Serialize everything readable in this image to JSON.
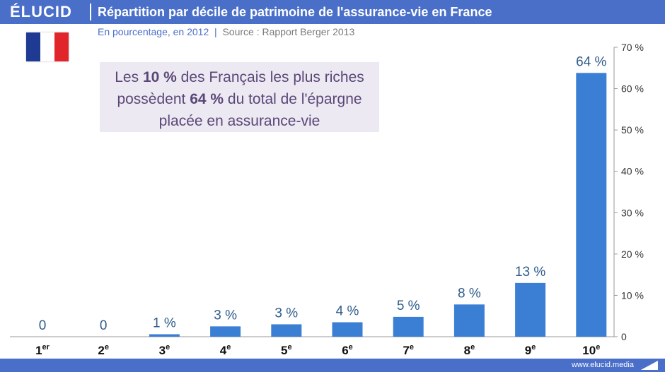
{
  "brand": "ÉLUCID",
  "footer": {
    "url": "www.elucid.media"
  },
  "colors": {
    "header": "#4a6fc9",
    "bar": "#3b7fd4",
    "annotation_bg": "#ece9f2",
    "annotation_text": "#5a4777"
  },
  "icons": {
    "flag": "france-flag-icon",
    "footer": "arrow-icon"
  },
  "annotation": {
    "part1": "Les ",
    "highlight1": "10 %",
    "part2": " des Français les plus riches",
    "part3": "possèdent ",
    "highlight2": "64 %",
    "part4": " du total de l'épargne",
    "part5": "placée en assurance-vie"
  },
  "chart_data": {
    "type": "bar",
    "title": "Répartition par décile de patrimoine de l'assurance-vie en France",
    "subtitle": "En pourcentage, en 2012",
    "source": "Source : Rapport Berger 2013",
    "categories": [
      {
        "base": "1",
        "sup": "er"
      },
      {
        "base": "2",
        "sup": "e"
      },
      {
        "base": "3",
        "sup": "e"
      },
      {
        "base": "4",
        "sup": "e"
      },
      {
        "base": "5",
        "sup": "e"
      },
      {
        "base": "6",
        "sup": "e"
      },
      {
        "base": "7",
        "sup": "e"
      },
      {
        "base": "8",
        "sup": "e"
      },
      {
        "base": "9",
        "sup": "e"
      },
      {
        "base": "10",
        "sup": "e"
      }
    ],
    "values": [
      0,
      0,
      0.6,
      2.5,
      3.0,
      3.5,
      4.8,
      7.8,
      13.0,
      63.8
    ],
    "data_labels": [
      "0",
      "0",
      "1 %",
      "3 %",
      "3 %",
      "4 %",
      "5 %",
      "8 %",
      "13 %",
      "64 %"
    ],
    "ylim": [
      0,
      70
    ],
    "yticks": [
      0,
      10,
      20,
      30,
      40,
      50,
      60,
      70
    ],
    "ytick_labels": [
      "0",
      "10 %",
      "20 %",
      "30 %",
      "40 %",
      "50 %",
      "60 %",
      "70 %"
    ],
    "y_axis_side": "right",
    "grid": false
  }
}
